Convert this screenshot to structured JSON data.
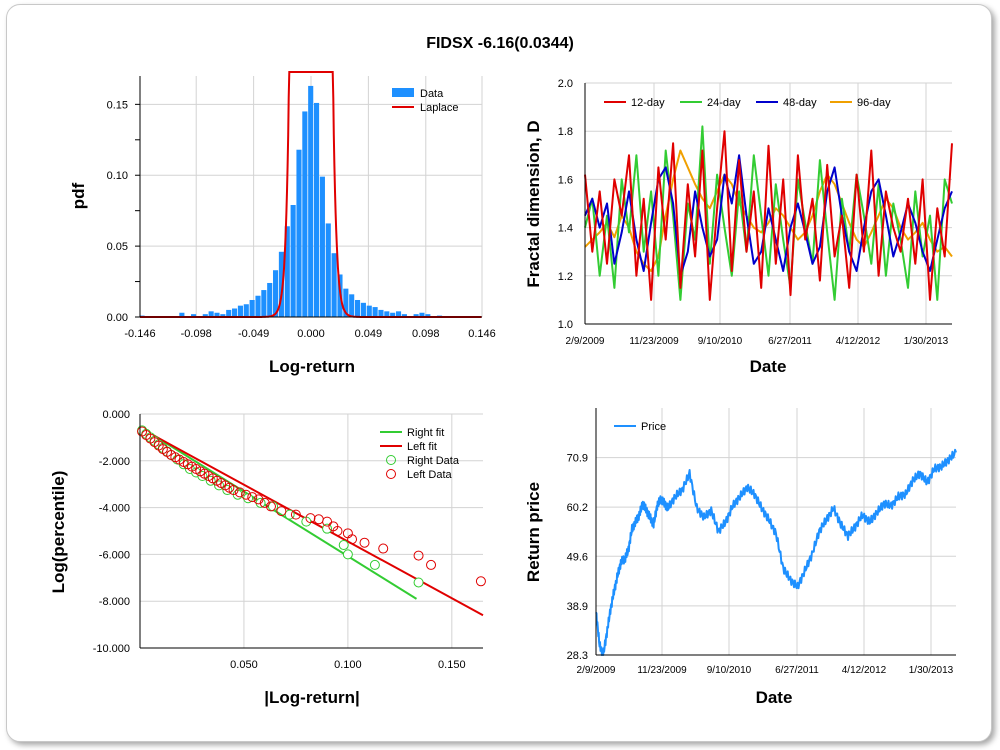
{
  "title": "FIDSX -6.16(0.0344)",
  "colors": {
    "hist": "#1e90ff",
    "laplace": "#e00000",
    "d12": "#e00000",
    "d24": "#33cc33",
    "d48": "#0000cc",
    "d96": "#f0a000",
    "right": "#33cc33",
    "left": "#e00000",
    "price": "#1e90ff",
    "grid": "#d3d3d3"
  },
  "chart_data": [
    {
      "id": "pdf",
      "type": "bar",
      "xlabel": "Log-return",
      "ylabel": "pdf",
      "xlim": [
        -0.146,
        0.146
      ],
      "ylim": [
        0,
        0.17
      ],
      "xticks": [
        "-0.146",
        "-0.098",
        "-0.049",
        "0.000",
        "0.049",
        "0.098",
        "0.146"
      ],
      "yticks": [
        "0.00",
        "0.05",
        "0.10",
        "0.15"
      ],
      "legend": [
        "Data",
        "Laplace"
      ],
      "bin_width": 0.00487,
      "bins": [
        {
          "x": -0.144,
          "v": 0.001
        },
        {
          "x": -0.11,
          "v": 0.003
        },
        {
          "x": -0.1,
          "v": 0.002
        },
        {
          "x": -0.09,
          "v": 0.002
        },
        {
          "x": -0.085,
          "v": 0.004
        },
        {
          "x": -0.08,
          "v": 0.003
        },
        {
          "x": -0.075,
          "v": 0.002
        },
        {
          "x": -0.07,
          "v": 0.005
        },
        {
          "x": -0.065,
          "v": 0.006
        },
        {
          "x": -0.06,
          "v": 0.008
        },
        {
          "x": -0.055,
          "v": 0.009
        },
        {
          "x": -0.05,
          "v": 0.012
        },
        {
          "x": -0.045,
          "v": 0.015
        },
        {
          "x": -0.04,
          "v": 0.019
        },
        {
          "x": -0.035,
          "v": 0.024
        },
        {
          "x": -0.03,
          "v": 0.033
        },
        {
          "x": -0.025,
          "v": 0.046
        },
        {
          "x": -0.02,
          "v": 0.064
        },
        {
          "x": -0.015,
          "v": 0.079
        },
        {
          "x": -0.01,
          "v": 0.118
        },
        {
          "x": -0.005,
          "v": 0.145
        },
        {
          "x": 0.0,
          "v": 0.163
        },
        {
          "x": 0.005,
          "v": 0.151
        },
        {
          "x": 0.01,
          "v": 0.099
        },
        {
          "x": 0.015,
          "v": 0.066
        },
        {
          "x": 0.02,
          "v": 0.045
        },
        {
          "x": 0.025,
          "v": 0.03
        },
        {
          "x": 0.03,
          "v": 0.02
        },
        {
          "x": 0.035,
          "v": 0.016
        },
        {
          "x": 0.04,
          "v": 0.012
        },
        {
          "x": 0.045,
          "v": 0.01
        },
        {
          "x": 0.05,
          "v": 0.008
        },
        {
          "x": 0.055,
          "v": 0.007
        },
        {
          "x": 0.06,
          "v": 0.005
        },
        {
          "x": 0.065,
          "v": 0.004
        },
        {
          "x": 0.07,
          "v": 0.003
        },
        {
          "x": 0.075,
          "v": 0.004
        },
        {
          "x": 0.08,
          "v": 0.002
        },
        {
          "x": 0.09,
          "v": 0.002
        },
        {
          "x": 0.095,
          "v": 0.003
        },
        {
          "x": 0.1,
          "v": 0.002
        },
        {
          "x": 0.11,
          "v": 0.001
        }
      ],
      "laplace": {
        "mu": 0.0,
        "b": 0.0027
      }
    },
    {
      "id": "fractal",
      "type": "line",
      "xlabel": "Date",
      "ylabel": "Fractal dimension, D",
      "ylim": [
        1.0,
        2.0
      ],
      "xticks": [
        "2/9/2009",
        "11/23/2009",
        "9/10/2010",
        "6/27/2011",
        "4/12/2012",
        "1/30/2013"
      ],
      "yticks": [
        "1.0",
        "1.2",
        "1.4",
        "1.6",
        "1.8",
        "2.0"
      ],
      "legend": [
        "12-day",
        "24-day",
        "48-day",
        "96-day"
      ],
      "x_range": [
        0,
        100
      ],
      "series": [
        {
          "name": "12-day",
          "x": [
            0,
            2,
            4,
            6,
            8,
            10,
            12,
            14,
            16,
            18,
            20,
            22,
            24,
            26,
            28,
            30,
            32,
            34,
            36,
            38,
            40,
            42,
            44,
            46,
            48,
            50,
            52,
            54,
            56,
            58,
            60,
            62,
            64,
            66,
            68,
            70,
            72,
            74,
            76,
            78,
            80,
            82,
            84,
            86,
            88,
            90,
            92,
            94,
            96,
            98,
            100
          ],
          "y": [
            1.62,
            1.3,
            1.55,
            1.25,
            1.6,
            1.45,
            1.7,
            1.2,
            1.52,
            1.1,
            1.65,
            1.35,
            1.75,
            1.15,
            1.58,
            1.28,
            1.72,
            1.1,
            1.48,
            1.8,
            1.22,
            1.68,
            1.3,
            1.55,
            1.15,
            1.74,
            1.25,
            1.6,
            1.12,
            1.7,
            1.35,
            1.52,
            1.18,
            1.66,
            1.28,
            1.45,
            1.15,
            1.62,
            1.3,
            1.72,
            1.2,
            1.55,
            1.4,
            1.3,
            1.52,
            1.25,
            1.6,
            1.1,
            1.48,
            1.28,
            1.75
          ]
        },
        {
          "name": "24-day",
          "x": [
            0,
            2,
            4,
            6,
            8,
            10,
            12,
            14,
            16,
            18,
            20,
            22,
            24,
            26,
            28,
            30,
            32,
            34,
            36,
            38,
            40,
            42,
            44,
            46,
            48,
            50,
            52,
            54,
            56,
            58,
            60,
            62,
            64,
            66,
            68,
            70,
            72,
            74,
            76,
            78,
            80,
            82,
            84,
            86,
            88,
            90,
            92,
            94,
            96,
            98,
            100
          ],
          "y": [
            1.4,
            1.52,
            1.2,
            1.45,
            1.15,
            1.6,
            1.38,
            1.7,
            1.3,
            1.55,
            1.2,
            1.72,
            1.45,
            1.1,
            1.5,
            1.35,
            1.82,
            1.25,
            1.62,
            1.4,
            1.2,
            1.55,
            1.3,
            1.7,
            1.45,
            1.2,
            1.58,
            1.35,
            1.15,
            1.6,
            1.42,
            1.25,
            1.68,
            1.38,
            1.1,
            1.52,
            1.3,
            1.62,
            1.45,
            1.25,
            1.58,
            1.2,
            1.5,
            1.35,
            1.15,
            1.55,
            1.28,
            1.45,
            1.1,
            1.6,
            1.5
          ]
        },
        {
          "name": "48-day",
          "x": [
            0,
            2,
            4,
            6,
            8,
            10,
            12,
            14,
            16,
            18,
            20,
            22,
            24,
            26,
            28,
            30,
            32,
            34,
            36,
            38,
            40,
            42,
            44,
            46,
            48,
            50,
            52,
            54,
            56,
            58,
            60,
            62,
            64,
            66,
            68,
            70,
            72,
            74,
            76,
            78,
            80,
            82,
            84,
            86,
            88,
            90,
            92,
            94,
            96,
            98,
            100
          ],
          "y": [
            1.45,
            1.52,
            1.4,
            1.5,
            1.25,
            1.38,
            1.55,
            1.35,
            1.22,
            1.42,
            1.6,
            1.65,
            1.5,
            1.2,
            1.3,
            1.55,
            1.4,
            1.28,
            1.35,
            1.62,
            1.5,
            1.7,
            1.45,
            1.25,
            1.3,
            1.48,
            1.35,
            1.22,
            1.4,
            1.5,
            1.38,
            1.25,
            1.32,
            1.55,
            1.65,
            1.45,
            1.3,
            1.22,
            1.4,
            1.55,
            1.6,
            1.45,
            1.28,
            1.38,
            1.5,
            1.42,
            1.3,
            1.22,
            1.35,
            1.48,
            1.55
          ]
        },
        {
          "name": "96-day",
          "x": [
            0,
            2,
            4,
            6,
            8,
            10,
            12,
            14,
            16,
            18,
            20,
            22,
            24,
            26,
            28,
            30,
            32,
            34,
            36,
            38,
            40,
            42,
            44,
            46,
            48,
            50,
            52,
            54,
            56,
            58,
            60,
            62,
            64,
            66,
            68,
            70,
            72,
            74,
            76,
            78,
            80,
            82,
            84,
            86,
            88,
            90,
            92,
            94,
            96,
            98,
            100
          ],
          "y": [
            1.32,
            1.35,
            1.38,
            1.42,
            1.36,
            1.45,
            1.4,
            1.3,
            1.25,
            1.22,
            1.28,
            1.45,
            1.6,
            1.72,
            1.65,
            1.58,
            1.52,
            1.48,
            1.55,
            1.62,
            1.58,
            1.5,
            1.45,
            1.4,
            1.38,
            1.42,
            1.48,
            1.45,
            1.4,
            1.35,
            1.38,
            1.45,
            1.55,
            1.62,
            1.58,
            1.5,
            1.42,
            1.35,
            1.32,
            1.38,
            1.45,
            1.52,
            1.48,
            1.4,
            1.35,
            1.38,
            1.42,
            1.35,
            1.3,
            1.32,
            1.28
          ]
        }
      ]
    },
    {
      "id": "tail",
      "type": "scatter",
      "xlabel": "|Log-return|",
      "ylabel": "Log(percentile)",
      "xlim": [
        0,
        0.165
      ],
      "ylim": [
        -10,
        0
      ],
      "xticks": [
        "0.050",
        "0.100",
        "0.150"
      ],
      "yticks": [
        "0.000",
        "-2.000",
        "-4.000",
        "-6.000",
        "-8.000",
        "-10.000"
      ],
      "legend": [
        "Right fit",
        "Left fit",
        "Right Data",
        "Left Data"
      ],
      "right_fit": {
        "x": [
          0.0,
          0.133
        ],
        "y": [
          -0.55,
          -7.9
        ]
      },
      "left_fit": {
        "x": [
          0.0,
          0.165
        ],
        "y": [
          -0.6,
          -8.6
        ]
      },
      "right_data": {
        "x": [
          0.001,
          0.003,
          0.005,
          0.007,
          0.009,
          0.011,
          0.013,
          0.015,
          0.018,
          0.021,
          0.024,
          0.027,
          0.03,
          0.034,
          0.038,
          0.042,
          0.047,
          0.052,
          0.058,
          0.064,
          0.072,
          0.08,
          0.09,
          0.098,
          0.1,
          0.113,
          0.134
        ],
        "y": [
          -0.7,
          -0.85,
          -1.0,
          -1.15,
          -1.3,
          -1.45,
          -1.6,
          -1.75,
          -1.95,
          -2.15,
          -2.35,
          -2.5,
          -2.65,
          -2.85,
          -3.05,
          -3.25,
          -3.45,
          -3.6,
          -3.8,
          -3.95,
          -4.3,
          -4.6,
          -4.9,
          -5.6,
          -6.0,
          -6.45,
          -7.2
        ]
      },
      "left_data": {
        "x": [
          0.001,
          0.003,
          0.005,
          0.007,
          0.009,
          0.011,
          0.013,
          0.015,
          0.017,
          0.019,
          0.021,
          0.023,
          0.025,
          0.027,
          0.029,
          0.031,
          0.033,
          0.035,
          0.037,
          0.039,
          0.041,
          0.043,
          0.045,
          0.048,
          0.051,
          0.054,
          0.057,
          0.06,
          0.063,
          0.068,
          0.075,
          0.082,
          0.086,
          0.09,
          0.093,
          0.095,
          0.1,
          0.102,
          0.108,
          0.117,
          0.134,
          0.14,
          0.164
        ],
        "y": [
          -0.75,
          -0.9,
          -1.05,
          -1.2,
          -1.35,
          -1.5,
          -1.62,
          -1.75,
          -1.85,
          -1.95,
          -2.05,
          -2.15,
          -2.25,
          -2.35,
          -2.45,
          -2.55,
          -2.65,
          -2.75,
          -2.85,
          -2.95,
          -3.05,
          -3.15,
          -3.25,
          -3.35,
          -3.45,
          -3.55,
          -3.65,
          -3.8,
          -3.95,
          -4.15,
          -4.3,
          -4.45,
          -4.5,
          -4.6,
          -4.8,
          -5.0,
          -5.1,
          -5.35,
          -5.5,
          -5.75,
          -6.05,
          -6.45,
          -7.15
        ]
      }
    },
    {
      "id": "price",
      "type": "line",
      "xlabel": "Date",
      "ylabel": "Return price",
      "ylim": [
        28.3,
        81.6
      ],
      "yticks": [
        "28.3",
        "38.9",
        "49.6",
        "60.2",
        "70.9"
      ],
      "xticks": [
        "2/9/2009",
        "11/23/2009",
        "9/10/2010",
        "6/27/2011",
        "4/12/2012",
        "1/30/2013"
      ],
      "legend": [
        "Price"
      ],
      "x_range": [
        0,
        100
      ],
      "series": [
        {
          "name": "Price",
          "x": [
            0,
            1,
            2,
            3,
            4,
            5,
            6,
            7,
            8,
            9,
            10,
            11,
            12,
            13,
            14,
            15,
            16,
            17,
            18,
            19,
            20,
            22,
            24,
            26,
            28,
            30,
            32,
            34,
            36,
            38,
            40,
            42,
            44,
            46,
            48,
            50,
            52,
            54,
            56,
            58,
            60,
            62,
            64,
            66,
            68,
            70,
            72,
            74,
            76,
            78,
            80,
            82,
            84,
            86,
            88,
            90,
            92,
            94,
            96,
            98,
            100
          ],
          "y": [
            37.5,
            30.5,
            28.3,
            33.0,
            38.0,
            42.0,
            45.5,
            48.5,
            49.0,
            51.0,
            55.5,
            57.0,
            58.5,
            61.0,
            59.5,
            58.0,
            56.5,
            60.5,
            62.0,
            61.0,
            60.0,
            62.5,
            64.0,
            67.5,
            60.0,
            58.0,
            59.5,
            55.0,
            57.0,
            60.5,
            62.5,
            64.5,
            63.0,
            60.0,
            57.5,
            54.5,
            47.0,
            44.5,
            43.0,
            46.5,
            50.0,
            55.0,
            57.5,
            60.0,
            56.5,
            54.0,
            56.0,
            58.5,
            57.0,
            59.0,
            61.0,
            60.5,
            62.5,
            63.0,
            66.0,
            67.5,
            65.5,
            68.5,
            69.0,
            70.5,
            72.0
          ]
        }
      ]
    }
  ]
}
